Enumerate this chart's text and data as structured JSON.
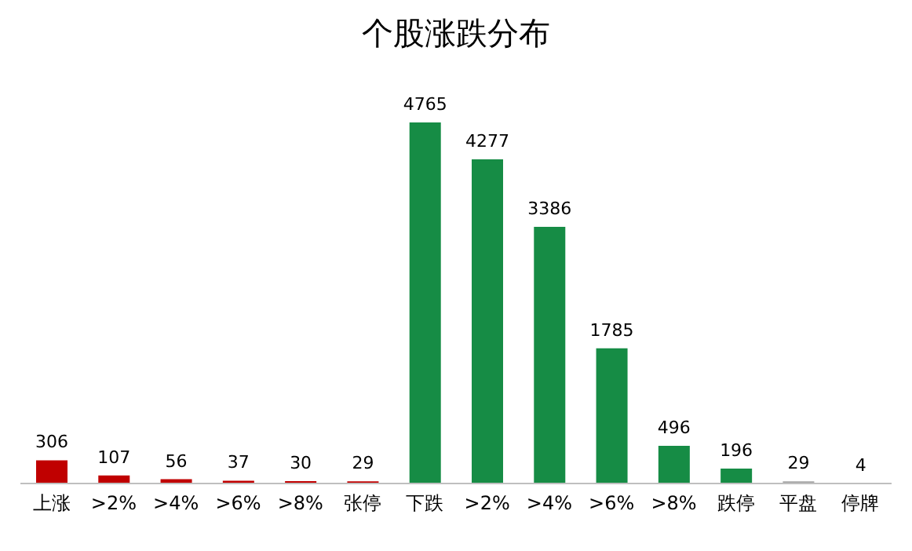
{
  "chart_data": {
    "type": "bar",
    "title": "个股涨跌分布",
    "categories": [
      "上涨",
      ">2%",
      ">4%",
      ">6%",
      ">8%",
      "张停",
      "下跌",
      ">2%",
      ">4%",
      ">6%",
      ">8%",
      "跌停",
      "平盘",
      "停牌"
    ],
    "values": [
      306,
      107,
      56,
      37,
      30,
      29,
      4765,
      4277,
      3386,
      1785,
      496,
      196,
      29,
      4
    ],
    "colors": [
      "#c00000",
      "#c00000",
      "#c00000",
      "#c00000",
      "#c00000",
      "#c00000",
      "#168c45",
      "#168c45",
      "#168c45",
      "#168c45",
      "#168c45",
      "#168c45",
      "#a6a6a6",
      "#595959"
    ],
    "data_labels": true,
    "grid": false,
    "legend": false
  }
}
